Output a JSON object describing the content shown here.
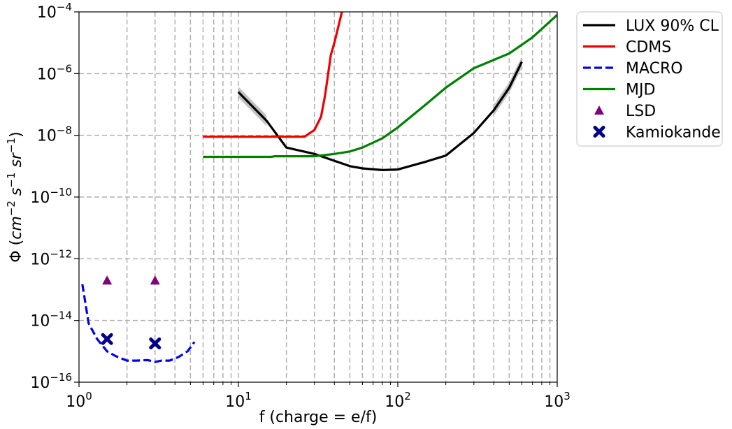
{
  "chart_data": {
    "type": "line",
    "x_scale": "log",
    "y_scale": "log",
    "xlim": [
      1,
      1000
    ],
    "ylim": [
      1e-16,
      0.0001
    ],
    "grid": true,
    "legend_position": "outside-top-right",
    "xlabel": "f (charge = e/f)",
    "ylabel": "Φ (cm⁻² s⁻¹ sr⁻¹)",
    "x_ticks": [
      {
        "base": "10",
        "exp": "0",
        "value": 1
      },
      {
        "base": "10",
        "exp": "1",
        "value": 10
      },
      {
        "base": "10",
        "exp": "2",
        "value": 100
      },
      {
        "base": "10",
        "exp": "3",
        "value": 1000
      }
    ],
    "y_ticks": [
      {
        "base": "10",
        "exp": "−4",
        "value": 0.0001
      },
      {
        "base": "10",
        "exp": "−6",
        "value": 1e-06
      },
      {
        "base": "10",
        "exp": "−8",
        "value": 1e-08
      },
      {
        "base": "10",
        "exp": "−10",
        "value": 1e-10
      },
      {
        "base": "10",
        "exp": "−12",
        "value": 1e-12
      },
      {
        "base": "10",
        "exp": "−14",
        "value": 1e-14
      },
      {
        "base": "10",
        "exp": "−16",
        "value": 1e-16
      }
    ],
    "series": [
      {
        "name": "LUX 90% CL",
        "kind": "line",
        "color": "#000000",
        "dash": "solid",
        "band_color": "#bbbbbb",
        "x": [
          10,
          15,
          20,
          30,
          40,
          50,
          60,
          80,
          100,
          150,
          200,
          300,
          400,
          500,
          600
        ],
        "y": [
          2.5e-07,
          3e-08,
          4e-09,
          2.5e-09,
          1.5e-09,
          1e-09,
          8.5e-10,
          7.5e-10,
          7.8e-10,
          1.4e-09,
          2.2e-09,
          1.2e-08,
          6.5e-08,
          3.5e-07,
          2.4e-06
        ]
      },
      {
        "name": "CDMS",
        "kind": "line",
        "color": "#ee0000",
        "dash": "solid",
        "x": [
          6,
          10,
          20,
          26,
          30,
          33,
          35,
          38,
          40,
          45
        ],
        "y": [
          9e-09,
          9e-09,
          9e-09,
          9e-09,
          1.5e-08,
          4e-08,
          2e-07,
          4e-06,
          1e-05,
          0.00012
        ]
      },
      {
        "name": "MACRO",
        "kind": "line",
        "color": "#0000ee",
        "dash": "dashed",
        "x": [
          1.05,
          1.15,
          1.3,
          1.5,
          1.7,
          2.0,
          2.3,
          2.7,
          3.0,
          3.3,
          3.7,
          4.2,
          4.8,
          5.3
        ],
        "y": [
          1.5e-13,
          8e-15,
          2.5e-15,
          1e-15,
          7e-16,
          5e-16,
          5e-16,
          5.2e-16,
          4.5e-16,
          5e-16,
          5e-16,
          6.5e-16,
          1e-15,
          2e-15
        ]
      },
      {
        "name": "MJD",
        "kind": "line",
        "color": "#008000",
        "dash": "solid",
        "x": [
          6,
          10,
          16,
          17,
          30,
          40,
          50,
          60,
          80,
          100,
          150,
          200,
          300,
          500,
          700,
          1000
        ],
        "y": [
          2e-09,
          2e-09,
          2e-09,
          2.1e-09,
          2.1e-09,
          2.5e-09,
          3e-09,
          4e-09,
          8e-09,
          1.8e-08,
          1e-07,
          3.5e-07,
          1.5e-06,
          4.5e-06,
          1.5e-05,
          8e-05
        ]
      },
      {
        "name": "LSD",
        "kind": "marker",
        "marker": "triangle",
        "color": "#800080",
        "x": [
          1.5,
          3
        ],
        "y": [
          2e-13,
          2e-13
        ]
      },
      {
        "name": "Kamiokande",
        "kind": "marker",
        "marker": "x",
        "color": "#00008b",
        "x": [
          1.5,
          3
        ],
        "y": [
          2.5e-15,
          1.8e-15
        ]
      }
    ]
  }
}
